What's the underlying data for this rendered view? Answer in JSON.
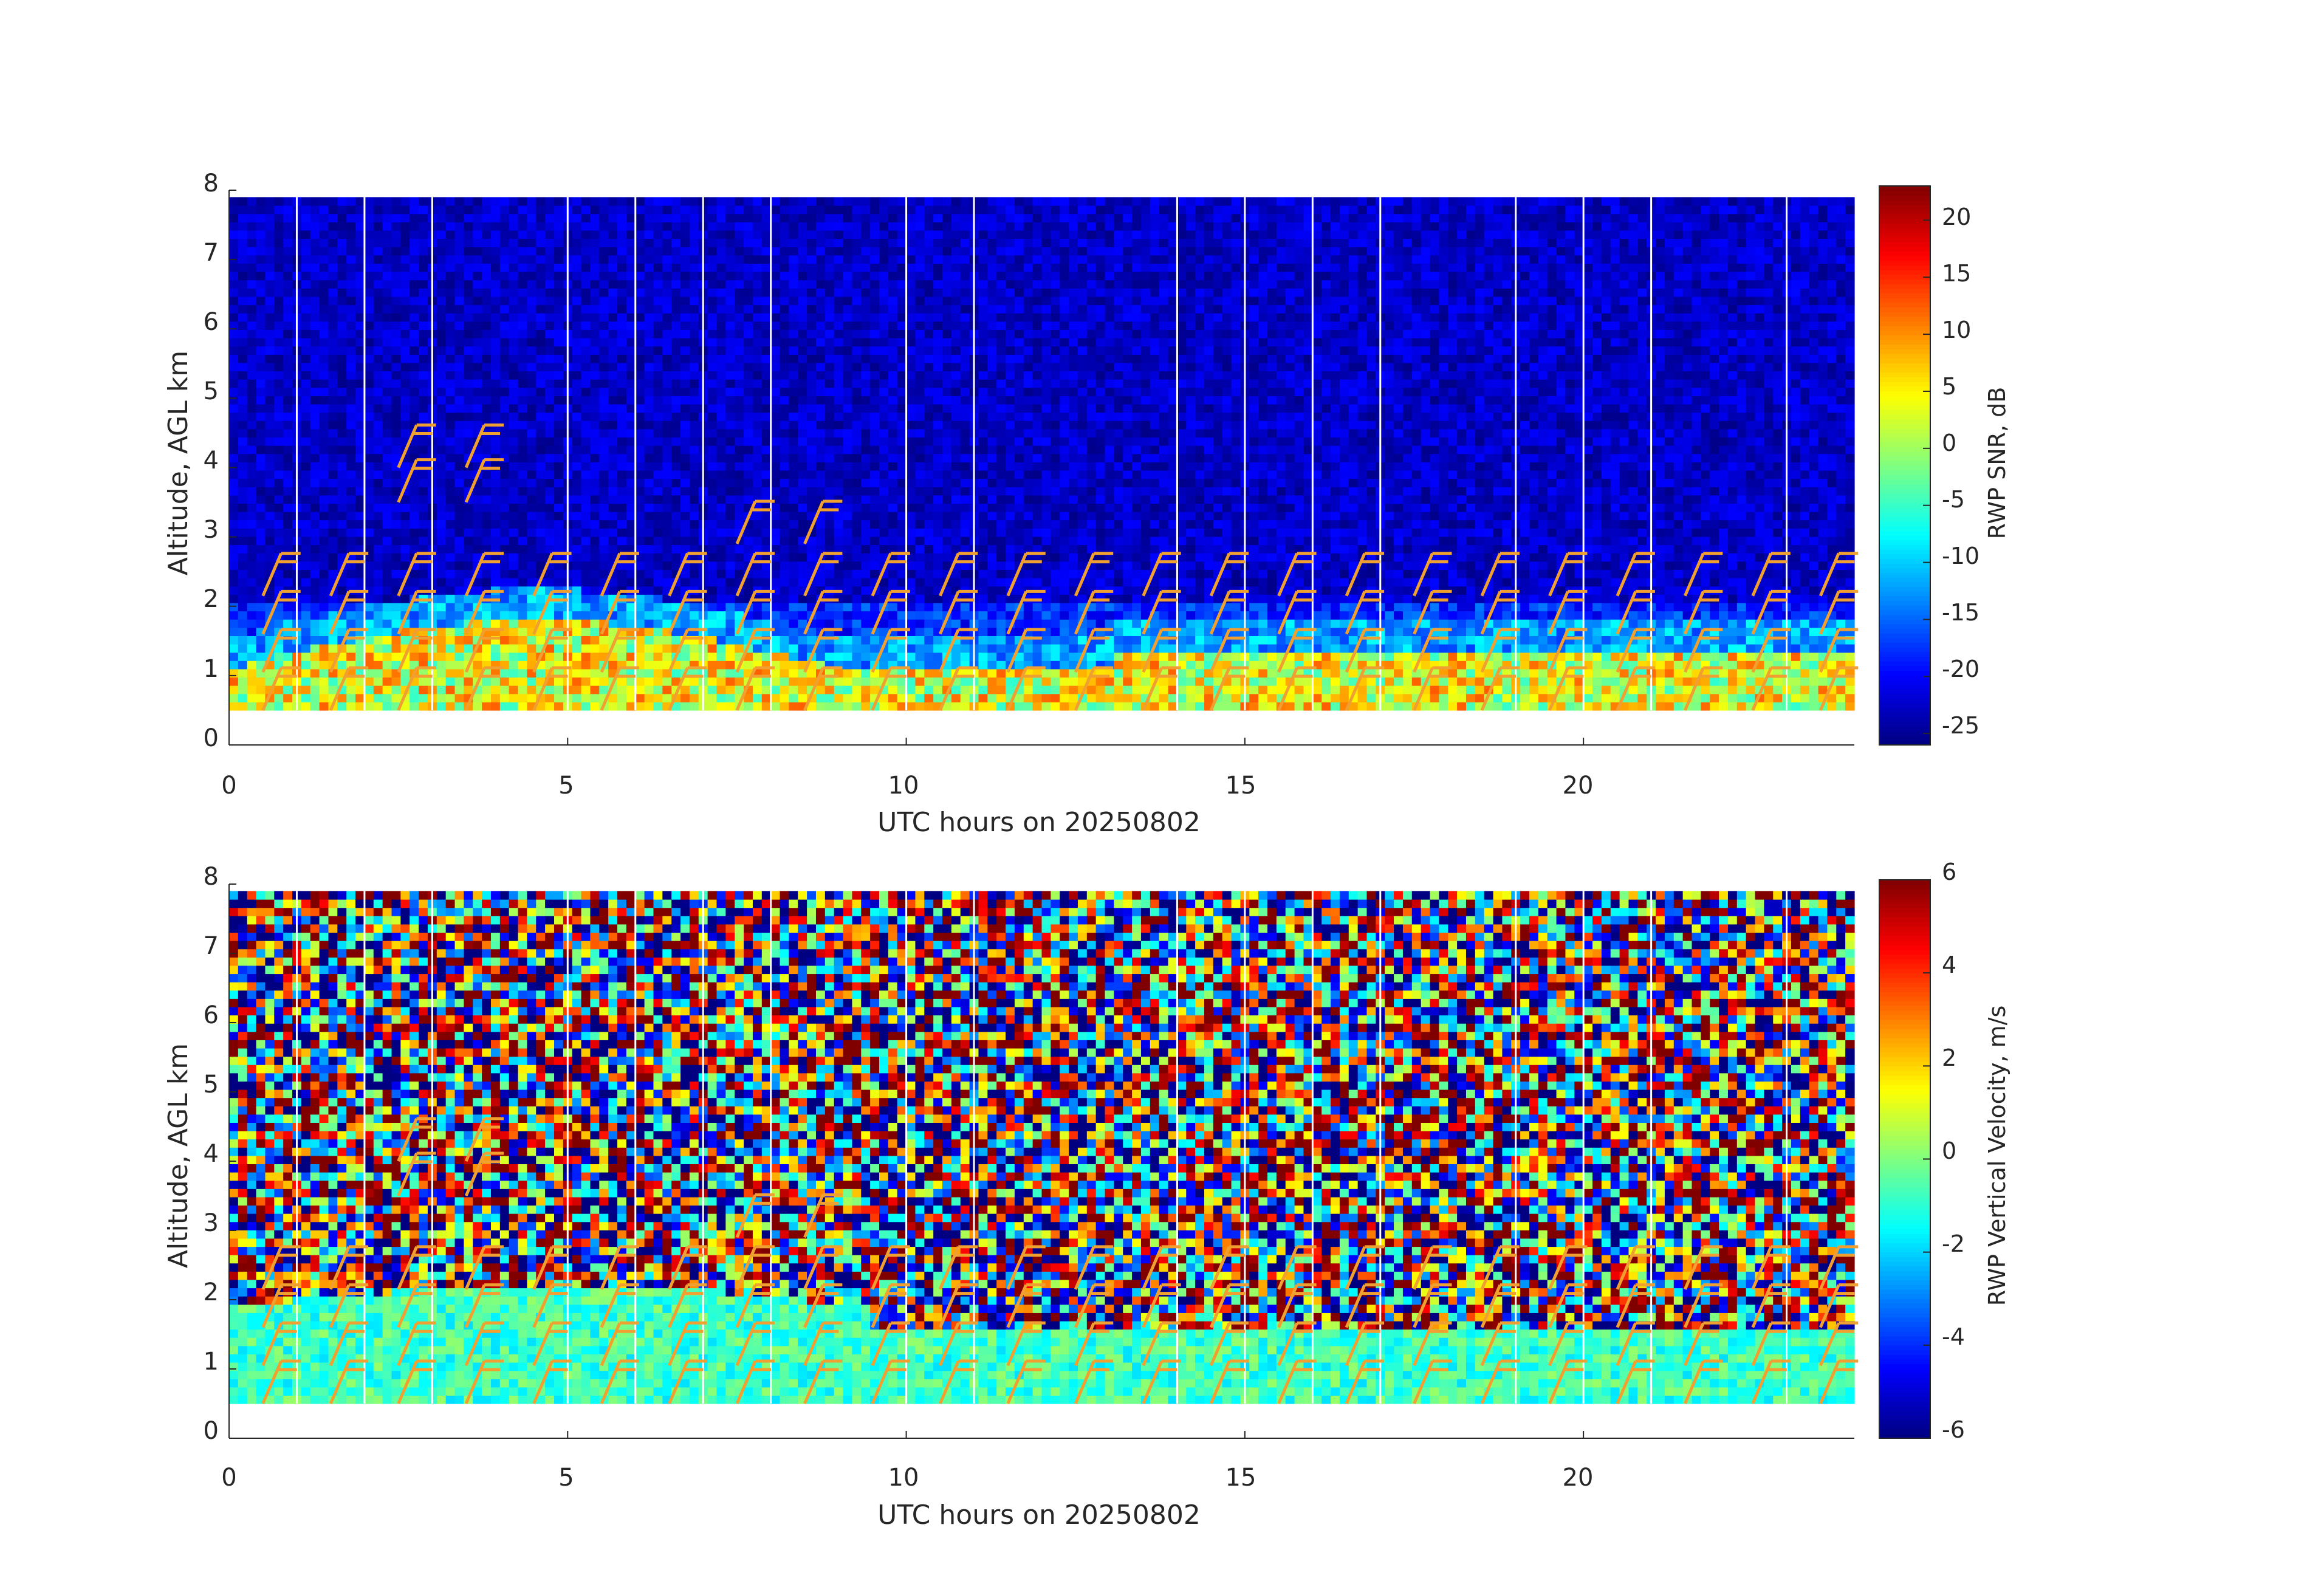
{
  "figure": {
    "background": "#ffffff",
    "colormap": "jet",
    "barb_color": "#f0a030"
  },
  "chart_data": [
    {
      "type": "heatmap",
      "title": "",
      "xlabel": "UTC hours on 20250802",
      "ylabel": "Altitude, AGL km",
      "xlim": [
        0,
        24
      ],
      "ylim": [
        0,
        8
      ],
      "xticks": [
        "0",
        "5",
        "10",
        "15",
        "20"
      ],
      "yticks": [
        "0",
        "1",
        "2",
        "3",
        "4",
        "5",
        "6",
        "7",
        "8"
      ],
      "data_range_y_km": [
        0.5,
        7.9
      ],
      "colorbar": {
        "label": "RWP SNR, dB",
        "clim": [
          -26,
          23
        ],
        "ticks": [
          "-25",
          "-20",
          "-15",
          "-10",
          "-5",
          "0",
          "5",
          "10",
          "15",
          "20"
        ],
        "tick_values": [
          -25,
          -20,
          -15,
          -10,
          -5,
          0,
          5,
          10,
          15,
          20
        ]
      },
      "white_gap_hours": [
        1,
        2,
        3,
        5,
        6,
        7,
        8,
        10,
        11,
        14,
        15,
        16,
        17,
        19,
        20,
        21,
        23
      ],
      "layers": [
        {
          "y0": 0.5,
          "y1": 1.1,
          "value": 2,
          "note": "bright boundary layer echo"
        },
        {
          "y0": 1.1,
          "y1": 1.5,
          "value": -12
        },
        {
          "y0": 1.5,
          "y1": 1.75,
          "value": -8
        },
        {
          "y0": 1.75,
          "y1": 7.9,
          "value": -23
        }
      ]
    },
    {
      "type": "heatmap",
      "title": "",
      "xlabel": "UTC hours on 20250802",
      "ylabel": "Altitude, AGL km",
      "xlim": [
        0,
        24
      ],
      "ylim": [
        0,
        8
      ],
      "xticks": [
        "0",
        "5",
        "10",
        "15",
        "20"
      ],
      "yticks": [
        "0",
        "1",
        "2",
        "3",
        "4",
        "5",
        "6",
        "7",
        "8"
      ],
      "data_range_y_km": [
        0.5,
        7.9
      ],
      "colorbar": {
        "label": "RWP Vertical Velocity, m/s",
        "clim": [
          -6,
          6
        ],
        "ticks": [
          "-6",
          "-4",
          "-2",
          "0",
          "2",
          "4",
          "6"
        ],
        "tick_values": [
          -6,
          -4,
          -2,
          0,
          2,
          4,
          6
        ]
      },
      "white_gap_hours": [
        1,
        2,
        3,
        5,
        6,
        7,
        8,
        10,
        11,
        14,
        15,
        16,
        17,
        19,
        20,
        21,
        23
      ],
      "layers": [
        {
          "y0": 0.5,
          "y1": 1.6,
          "value": -1,
          "note": "near-zero velocities in boundary layer"
        },
        {
          "y0": 1.6,
          "y1": 7.9,
          "value": 0,
          "note": "noisy random field"
        }
      ]
    }
  ]
}
